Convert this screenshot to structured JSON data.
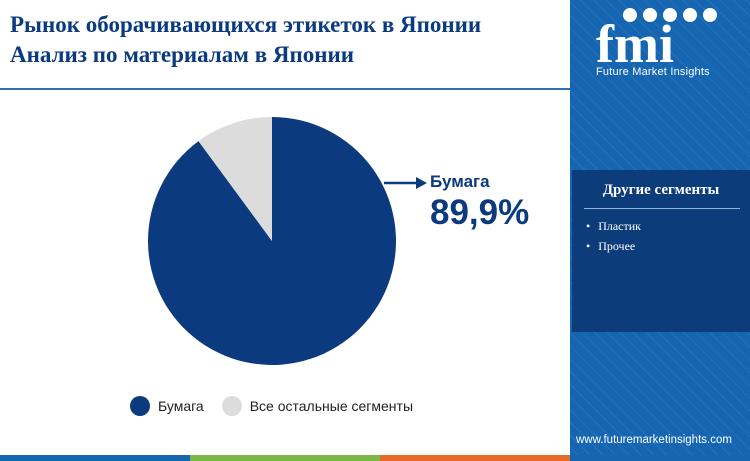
{
  "header": {
    "title_line1": "Рынок оборачивающихся этикеток в Японии",
    "title_line2": "Анализ по материалам в Японии"
  },
  "chart_data": {
    "type": "pie",
    "categories": [
      "Бумага",
      "Все остальные сегменты"
    ],
    "values": [
      89.9,
      10.1
    ],
    "colors": [
      "#0b3a7e",
      "#dcdcdc"
    ],
    "start_angle_deg": 0,
    "direction": "clockwise",
    "callout": {
      "label": "Бумага",
      "value": "89,9%"
    },
    "legend": [
      "Бумага",
      "Все остальные сегменты"
    ],
    "legend_position": "bottom"
  },
  "sidebar": {
    "logo_text": "fmi",
    "logo_subtitle": "Future Market Insights",
    "segments_title": "Другие сегменты",
    "segments": [
      "Пластик",
      "Прочее"
    ],
    "url": "www.futuremarketinsights.com",
    "background_color": "#1565b0",
    "panel_color": "#0c3d7a"
  },
  "footer_bar_colors": [
    "#1565b0",
    "#7ab648",
    "#e86a2a"
  ]
}
